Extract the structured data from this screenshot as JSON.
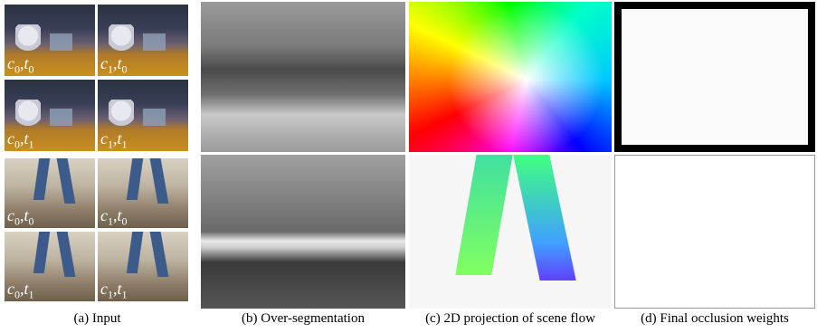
{
  "input": {
    "labels": [
      [
        "c",
        "0",
        ",",
        "t",
        "0"
      ],
      [
        "c",
        "1",
        ",",
        "t",
        "0"
      ],
      [
        "c",
        "0",
        ",",
        "t",
        "1"
      ],
      [
        "c",
        "1",
        ",",
        "t",
        "1"
      ],
      [
        "c",
        "0",
        ",",
        "t",
        "0"
      ],
      [
        "c",
        "1",
        ",",
        "t",
        "0"
      ],
      [
        "c",
        "0",
        ",",
        "t",
        "1"
      ],
      [
        "c",
        "1",
        ",",
        "t",
        "1"
      ]
    ]
  },
  "captions": [
    "(a) Input",
    "(b) Over-segmentation",
    "(c) 2D projection of scene flow",
    "(d) Final occlusion weights"
  ]
}
